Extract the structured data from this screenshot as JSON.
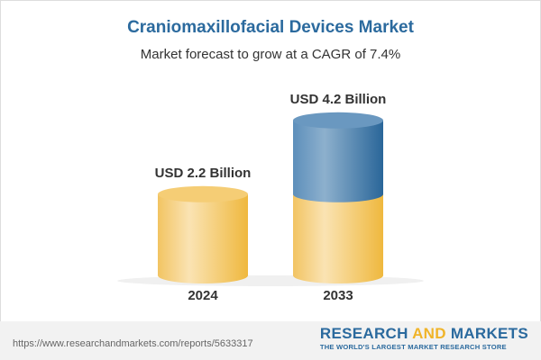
{
  "header": {
    "title": "Craniomaxillofacial Devices Market",
    "subtitle": "Market forecast to grow at a CAGR of 7.4%"
  },
  "chart_data": {
    "type": "bar",
    "style": "3d-cylinder",
    "categories": [
      "2024",
      "2033"
    ],
    "values": [
      2.2,
      4.2
    ],
    "unit": "USD Billion",
    "data_labels": [
      "USD 2.2 Billion",
      "USD 4.2 Billion"
    ],
    "colors": {
      "base": "#f3c35a",
      "growth": "#4a82b4"
    }
  },
  "footer": {
    "url": "https://www.researchandmarkets.com/reports/5633317",
    "logo_part1": "RESEARCH ",
    "logo_part2": "AND",
    "logo_part3": " MARKETS",
    "logo_tagline": "THE WORLD'S LARGEST MARKET RESEARCH STORE"
  }
}
